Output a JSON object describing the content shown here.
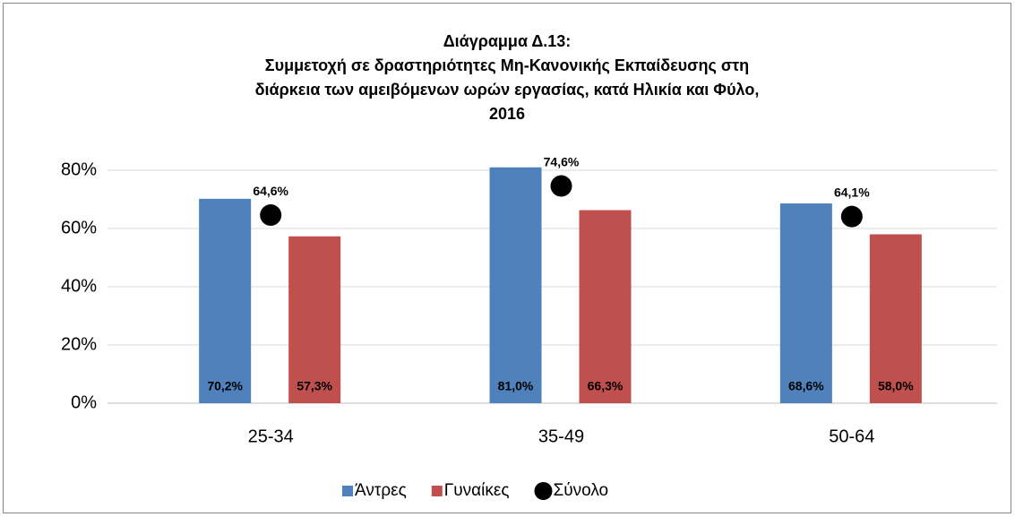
{
  "chart_data": {
    "type": "bar",
    "title": [
      "Διάγραμμα Δ.13:",
      "Συμμετοχή σε δραστηριότητες Μη-Κανονικής Εκπαίδευσης στη",
      "διάρκεια των αμειβόμενων ωρών εργασίας, κατά Ηλικία και Φύλο,",
      "2016"
    ],
    "categories": [
      "25-34",
      "35-49",
      "50-64"
    ],
    "series": [
      {
        "name": "Άντρες",
        "color": "#4f81bd",
        "values": [
          70.2,
          81.0,
          68.6
        ],
        "value_labels": [
          "70,2%",
          "81,0%",
          "68,6%"
        ]
      },
      {
        "name": "Γυναίκες",
        "color": "#c0504d",
        "values": [
          57.3,
          66.3,
          58.0
        ],
        "value_labels": [
          "57,3%",
          "66,3%",
          "58,0%"
        ]
      },
      {
        "name": "Σύνολο",
        "type": "scatter",
        "color": "#000000",
        "values": [
          64.6,
          74.6,
          64.1
        ],
        "value_labels": [
          "64,6%",
          "74,6%",
          "64,1%"
        ]
      }
    ],
    "ylim": [
      0,
      80
    ],
    "yticks": [
      {
        "value": 0,
        "label": "0%"
      },
      {
        "value": 20,
        "label": "20%"
      },
      {
        "value": 40,
        "label": "40%"
      },
      {
        "value": 60,
        "label": "60%"
      },
      {
        "value": 80,
        "label": "80%"
      }
    ],
    "grid": true,
    "legend": "bottom"
  }
}
